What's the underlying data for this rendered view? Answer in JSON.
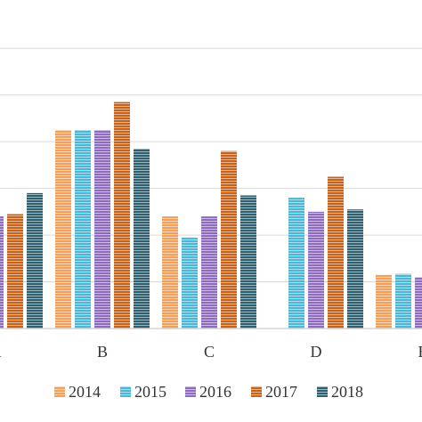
{
  "chart_data": {
    "type": "bar",
    "categories": [
      "A",
      "B",
      "C",
      "D",
      "E"
    ],
    "series": [
      {
        "name": "2014",
        "color": "#f2a05c",
        "values": [
          null,
          42.5,
          24,
          null,
          11.5
        ]
      },
      {
        "name": "2015",
        "color": "#4bb6d6",
        "values": [
          null,
          42.5,
          19.5,
          28,
          11.7
        ]
      },
      {
        "name": "2016",
        "color": "#8e6bbf",
        "values": [
          24,
          42.5,
          24,
          25,
          11
        ]
      },
      {
        "name": "2017",
        "color": "#c8621b",
        "values": [
          24.5,
          48.5,
          38,
          32.5,
          null
        ]
      },
      {
        "name": "2018",
        "color": "#2f6070",
        "values": [
          29,
          38.5,
          28.5,
          25.5,
          null
        ]
      }
    ],
    "ylim": [
      0,
      65
    ],
    "grid": true,
    "gridline_values": [
      10,
      20,
      30,
      40,
      50,
      60
    ],
    "legend_position": "bottom",
    "bar_pattern": "horizontal-stripes"
  }
}
